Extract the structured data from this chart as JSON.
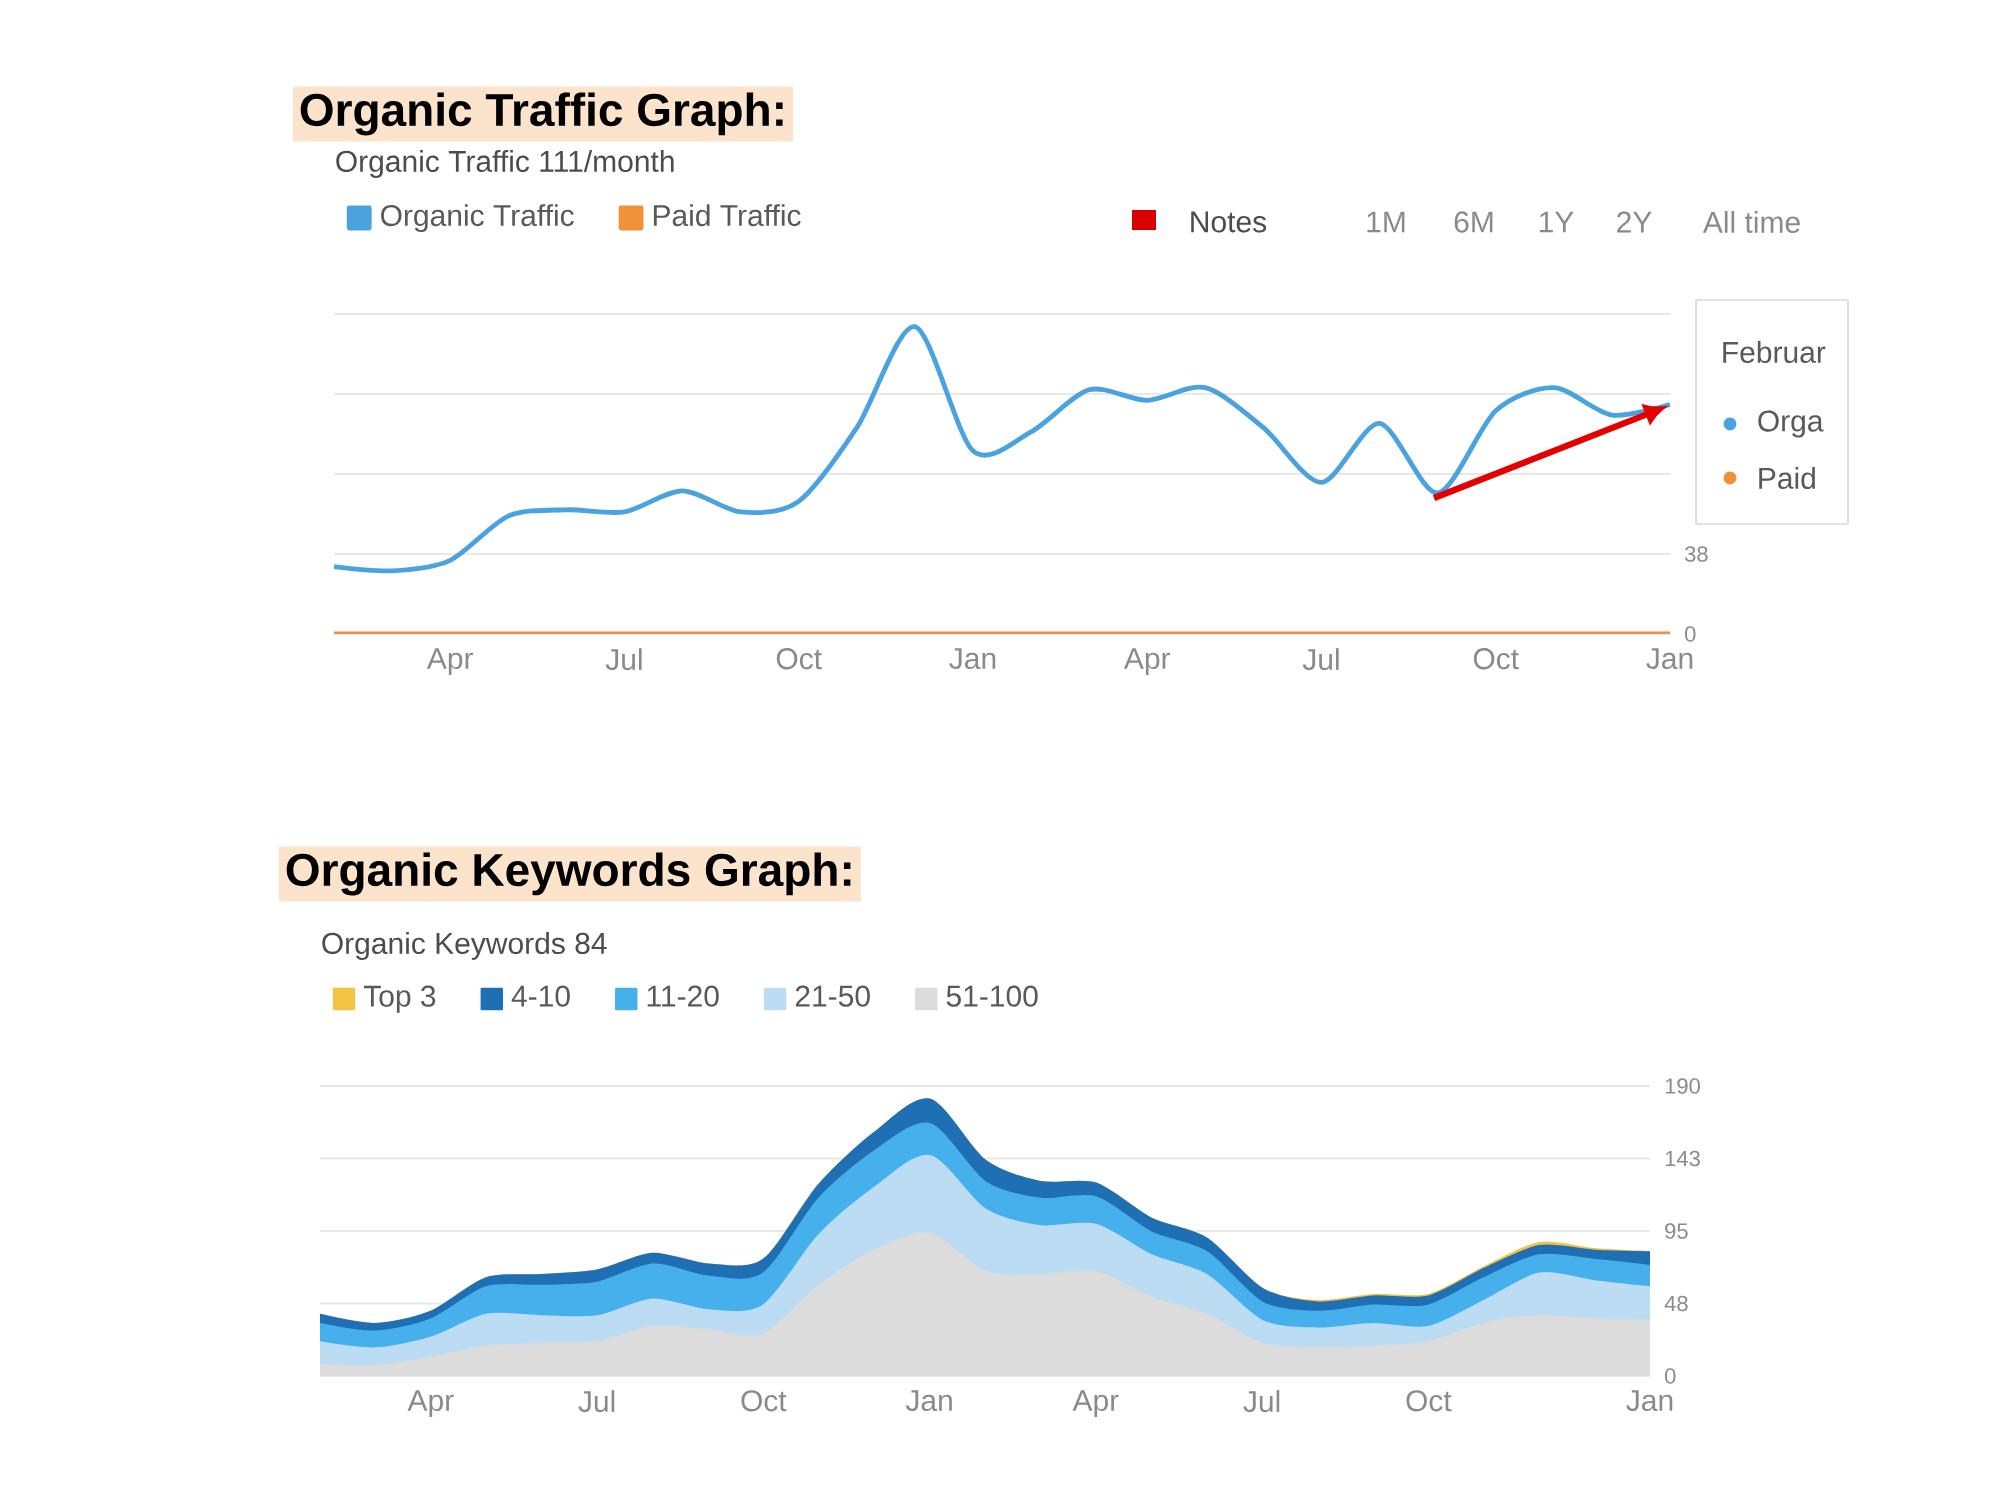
{
  "chart_data": [
    {
      "type": "line",
      "title": "Organic Traffic Graph:",
      "subtitle": "Organic Traffic 111/month",
      "categories": [
        null,
        null,
        "Apr",
        null,
        null,
        "Jul",
        null,
        null,
        "Oct",
        null,
        null,
        "Jan",
        null,
        null,
        "Apr",
        null,
        null,
        "Jul",
        null,
        null,
        "Oct",
        null,
        null,
        "Jan"
      ],
      "ylim": [
        0,
        152
      ],
      "yticks": [
        0,
        38,
        {
          "value": 76,
          "label": null
        },
        {
          "value": 114,
          "label": null
        },
        {
          "value": 152,
          "label": null
        }
      ],
      "grid": "y",
      "legend": "top left",
      "series": [
        {
          "name": "Organic Traffic",
          "color": "#4aa3df",
          "values": [
            32,
            30,
            35,
            56,
            59,
            58,
            68,
            58,
            63,
            98,
            146,
            87,
            96,
            116,
            111,
            117,
            98,
            72,
            100,
            67,
            106,
            117,
            104,
            109
          ]
        },
        {
          "name": "Paid Traffic",
          "color": "#f0913a",
          "values": [
            0,
            0,
            0,
            0,
            0,
            0,
            0,
            0,
            0,
            0,
            0,
            0,
            0,
            0,
            0,
            0,
            0,
            0,
            0,
            0,
            0,
            0,
            0,
            0
          ]
        }
      ],
      "annotations": [
        "Notes",
        "1M",
        "6M",
        "1Y",
        "2Y",
        "All time",
        "Februar",
        "Orga",
        "Paid"
      ]
    },
    {
      "type": "area",
      "stacked": true,
      "title": "Organic Keywords Graph:",
      "subtitle": "Organic Keywords 84",
      "categories": [
        null,
        null,
        "Apr",
        null,
        null,
        "Jul",
        null,
        null,
        "Oct",
        null,
        null,
        "Jan",
        null,
        null,
        "Apr",
        null,
        null,
        "Jul",
        null,
        null,
        "Oct",
        null,
        null,
        null,
        "Jan"
      ],
      "ylim": [
        0,
        190
      ],
      "yticks": [
        0,
        {
          "value": 47.5,
          "label": "48"
        },
        95,
        {
          "value": 142.5,
          "label": "143"
        },
        190
      ],
      "grid": "y",
      "legend": "top left",
      "series": [
        {
          "name": "51-100",
          "color": "#dcdcdc",
          "values": [
            7,
            6,
            12,
            19,
            21,
            22,
            32,
            30,
            27,
            59,
            82,
            93,
            68,
            66,
            68,
            51,
            40,
            21,
            18,
            19,
            22,
            34,
            39,
            37,
            36
          ]
        },
        {
          "name": "21-50",
          "color": "#bcdcf4",
          "values": [
            15,
            12,
            13,
            21,
            18,
            17,
            18,
            13,
            19,
            33,
            41,
            51,
            41,
            32,
            31,
            28,
            26,
            15,
            13,
            15,
            10,
            15,
            28,
            25,
            22
          ]
        },
        {
          "name": "11-20",
          "color": "#45b0ec",
          "values": [
            12,
            11,
            12,
            18,
            20,
            22,
            23,
            22,
            21,
            24,
            24,
            21,
            18,
            18,
            18,
            15,
            15,
            12,
            11,
            12,
            14,
            15,
            12,
            14,
            14
          ]
        },
        {
          "name": "4-10",
          "color": "#1f6fb5",
          "values": [
            6,
            5,
            5,
            6,
            7,
            8,
            7,
            8,
            9,
            9,
            12,
            16,
            14,
            11,
            9,
            9,
            9,
            9,
            6,
            6,
            6,
            6,
            6,
            6,
            9
          ]
        },
        {
          "name": "Top 3",
          "color": "#f5c342",
          "values": [
            0,
            0,
            0,
            0,
            0,
            0,
            0,
            0,
            0,
            0,
            0,
            0,
            0,
            0,
            0,
            0,
            0,
            0,
            1,
            1,
            1,
            1,
            2,
            1,
            0
          ]
        }
      ]
    }
  ]
}
